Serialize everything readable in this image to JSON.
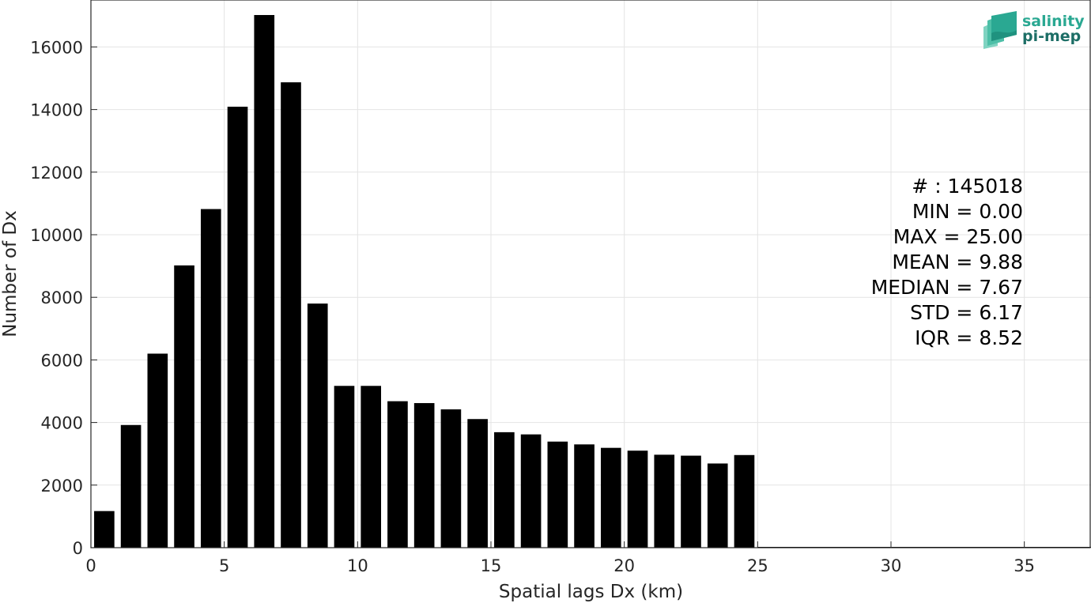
{
  "chart_data": {
    "type": "bar",
    "xlabel": "Spatial lags Dx (km)",
    "ylabel": "Number of Dx",
    "xlim": [
      0,
      37.5
    ],
    "ylim": [
      0,
      17500
    ],
    "xticks": [
      0,
      5,
      10,
      15,
      20,
      25,
      30,
      35
    ],
    "yticks": [
      0,
      2000,
      4000,
      6000,
      8000,
      10000,
      12000,
      14000,
      16000
    ],
    "grid": true,
    "bar_color": "#000000",
    "bin_width": 1,
    "x": [
      0.5,
      1.5,
      2.5,
      3.5,
      4.5,
      5.5,
      6.5,
      7.5,
      8.5,
      9.5,
      10.5,
      11.5,
      12.5,
      13.5,
      14.5,
      15.5,
      16.5,
      17.5,
      18.5,
      19.5,
      20.5,
      21.5,
      22.5,
      23.5,
      24.5
    ],
    "values": [
      1170,
      3920,
      6200,
      9020,
      10820,
      14090,
      17020,
      14870,
      7800,
      5170,
      5170,
      4680,
      4620,
      4420,
      4110,
      3690,
      3620,
      3390,
      3300,
      3190,
      3100,
      2970,
      2940,
      2690,
      2960
    ],
    "stats_lines": [
      "# : 145018",
      "MIN = 0.00",
      "MAX =  25.00",
      "MEAN = 9.88",
      "MEDIAN = 7.67",
      "STD = 6.17",
      "IQR = 8.52"
    ]
  },
  "logo": {
    "line1": "salinity",
    "line2": "pi-mep",
    "color1": "#2aa892",
    "color2": "#1d6e66"
  }
}
